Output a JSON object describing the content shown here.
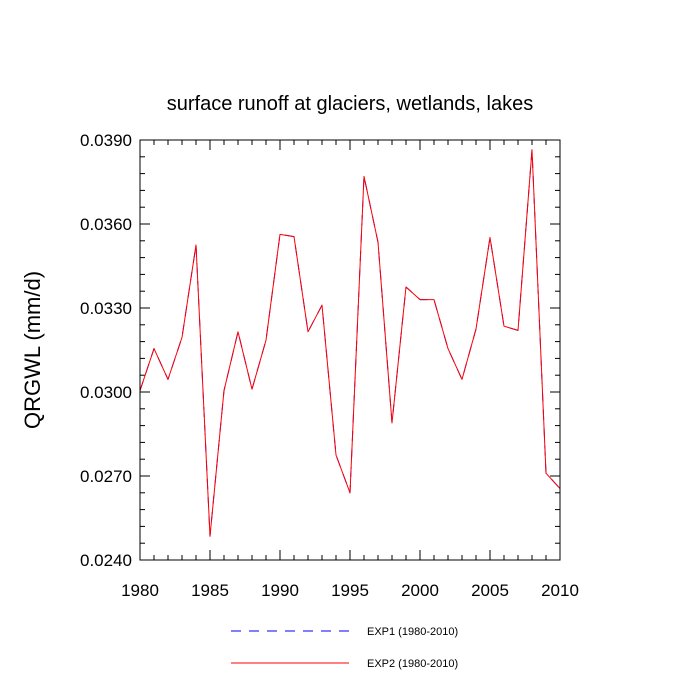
{
  "chart_data": {
    "type": "line",
    "title": "surface runoff at glaciers, wetlands, lakes",
    "xlabel": "",
    "ylabel": "QRGWL  (mm/d)",
    "xlim": [
      1980,
      2010
    ],
    "ylim": [
      0.024,
      0.039
    ],
    "xticks": [
      1980,
      1985,
      1990,
      1995,
      2000,
      2005,
      2010
    ],
    "xtick_labels": [
      "1980",
      "1985",
      "1990",
      "1995",
      "2000",
      "2005",
      "2010"
    ],
    "yticks": [
      0.024,
      0.027,
      0.03,
      0.033,
      0.036,
      0.039
    ],
    "ytick_labels": [
      "0.0240",
      "0.0270",
      "0.0300",
      "0.0330",
      "0.0360",
      "0.0390"
    ],
    "grid": false,
    "legend_position": "bottom",
    "x": [
      1980,
      1981,
      1982,
      1983,
      1984,
      1985,
      1986,
      1987,
      1988,
      1989,
      1990,
      1991,
      1992,
      1993,
      1994,
      1995,
      1996,
      1997,
      1998,
      1999,
      2000,
      2001,
      2002,
      2003,
      2004,
      2005,
      2006,
      2007,
      2008,
      2009,
      2010
    ],
    "series": [
      {
        "name": "EXP1 (1980-2010)",
        "color": "#0000ff",
        "style": "dashed",
        "values": [
          0.03005,
          0.03155,
          0.03045,
          0.03195,
          0.03525,
          0.02485,
          0.03005,
          0.03215,
          0.0301,
          0.03185,
          0.03563,
          0.03555,
          0.03215,
          0.0331,
          0.02775,
          0.0264,
          0.0377,
          0.03535,
          0.0289,
          0.03375,
          0.0333,
          0.0333,
          0.03155,
          0.03045,
          0.03225,
          0.03552,
          0.03235,
          0.0322,
          0.03865,
          0.0271,
          0.02655
        ]
      },
      {
        "name": "EXP2 (1980-2010)",
        "color": "#ff0000",
        "style": "solid",
        "values": [
          0.03005,
          0.03155,
          0.03045,
          0.03195,
          0.03525,
          0.02485,
          0.03005,
          0.03215,
          0.0301,
          0.03185,
          0.03563,
          0.03555,
          0.03215,
          0.0331,
          0.02775,
          0.0264,
          0.0377,
          0.03535,
          0.0289,
          0.03375,
          0.0333,
          0.0333,
          0.03155,
          0.03045,
          0.03225,
          0.03552,
          0.03235,
          0.0322,
          0.03865,
          0.0271,
          0.02655
        ]
      }
    ]
  }
}
